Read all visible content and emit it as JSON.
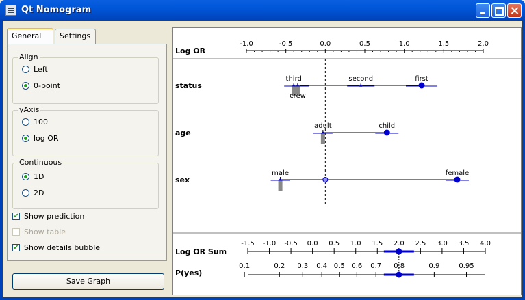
{
  "window": {
    "title": "Qt Nomogram"
  },
  "tabs": [
    {
      "label": "General"
    },
    {
      "label": "Settings"
    }
  ],
  "align": {
    "title": "Align",
    "options": [
      {
        "label": "Left",
        "selected": false
      },
      {
        "label": "0-point",
        "selected": true
      }
    ]
  },
  "yaxis": {
    "title": "yAxis",
    "options": [
      {
        "label": "100",
        "selected": false
      },
      {
        "label": "log OR",
        "selected": true
      }
    ]
  },
  "continuous": {
    "title": "Continuous",
    "options": [
      {
        "label": "1D",
        "selected": true
      },
      {
        "label": "2D",
        "selected": false
      }
    ]
  },
  "checks": {
    "show_prediction": {
      "label": "Show prediction",
      "checked": true
    },
    "show_table": {
      "label": "Show table",
      "checked": false,
      "disabled": true
    },
    "show_details": {
      "label": "Show details bubble",
      "checked": true
    }
  },
  "save_button": {
    "label": "Save Graph"
  },
  "nomogram": {
    "header": {
      "label": "Log OR",
      "ticks": [
        "-1.0",
        "-0.5",
        "0.0",
        "0.5",
        "1.0",
        "1.5",
        "2.0"
      ]
    },
    "attributes": [
      {
        "name": "status",
        "values": [
          {
            "label": "third",
            "log_or": -0.4
          },
          {
            "label": "crew",
            "log_or": -0.35
          },
          {
            "label": "second",
            "log_or": 0.45
          },
          {
            "label": "first",
            "log_or": 1.22
          }
        ]
      },
      {
        "name": "age",
        "values": [
          {
            "label": "adult",
            "log_or": -0.03
          },
          {
            "label": "child",
            "log_or": 0.78
          }
        ]
      },
      {
        "name": "sex",
        "values": [
          {
            "label": "male",
            "log_or": -0.57
          },
          {
            "label": "female",
            "log_or": 1.67
          }
        ]
      }
    ],
    "sum_axis": {
      "label": "Log OR Sum",
      "ticks": [
        "-1.5",
        "-1.0",
        "-0.5",
        "0.0",
        "0.5",
        "1.0",
        "1.5",
        "2.0",
        "2.5",
        "3.0",
        "3.5",
        "4.0"
      ]
    },
    "prob_axis": {
      "label": "P(yes)",
      "ticks": [
        "0.1",
        "0.2",
        "0.3",
        "0.4",
        "0.5",
        "0.6",
        "0.7",
        "0.8",
        "0.9",
        "0.95"
      ]
    },
    "prediction": {
      "log_or_sum": 2.0
    },
    "colors": {
      "marker": "#0000cc",
      "bar": "#888888",
      "axis": "#000000"
    }
  }
}
